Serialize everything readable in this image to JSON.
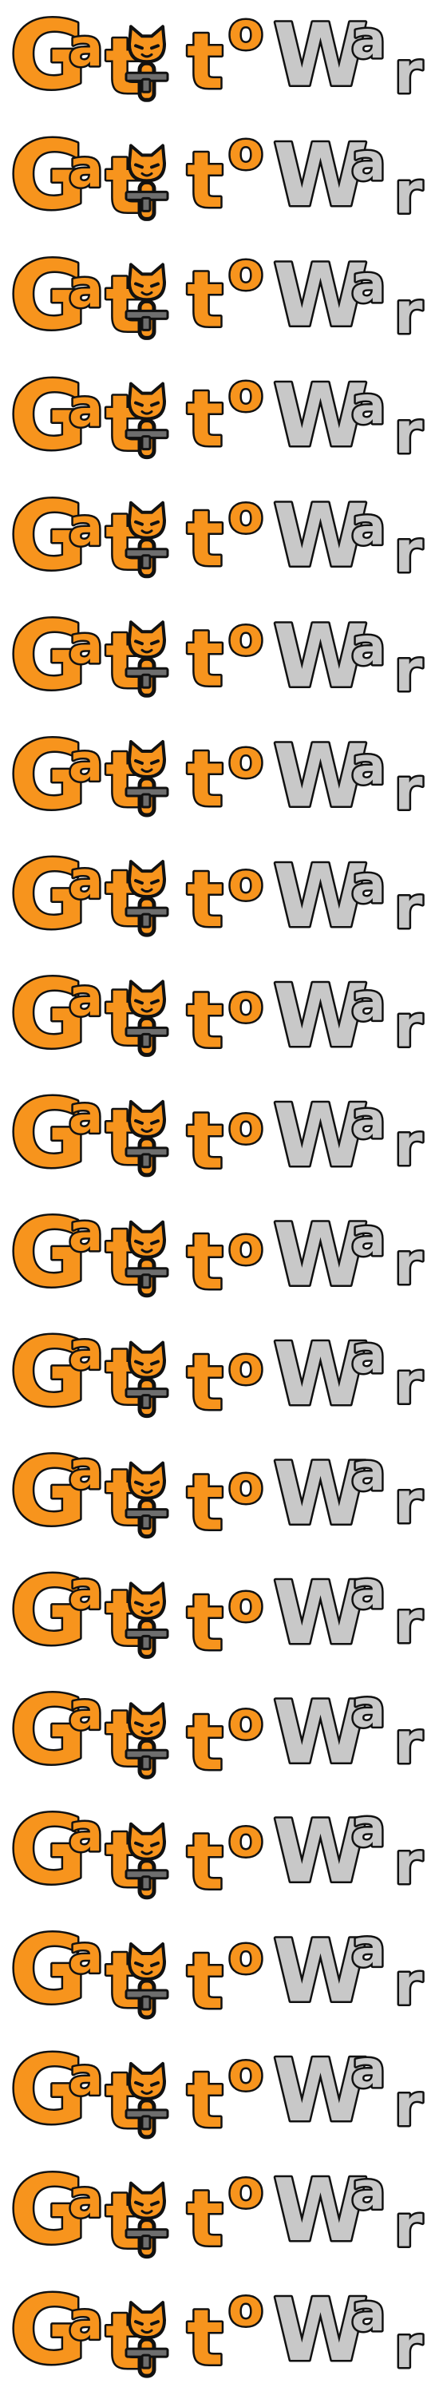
{
  "sprite_sheet": {
    "frame_count": 20,
    "logo_word_1": "Gatito",
    "logo_word_2": "War",
    "colors": {
      "background": "#ffffff",
      "gatito_fill": "#f7941d",
      "war_fill": "#c8c8c8",
      "outline": "#111111",
      "gun": "#6e6e6e"
    },
    "icons": [
      "cat-head-icon",
      "gun-icon"
    ]
  }
}
